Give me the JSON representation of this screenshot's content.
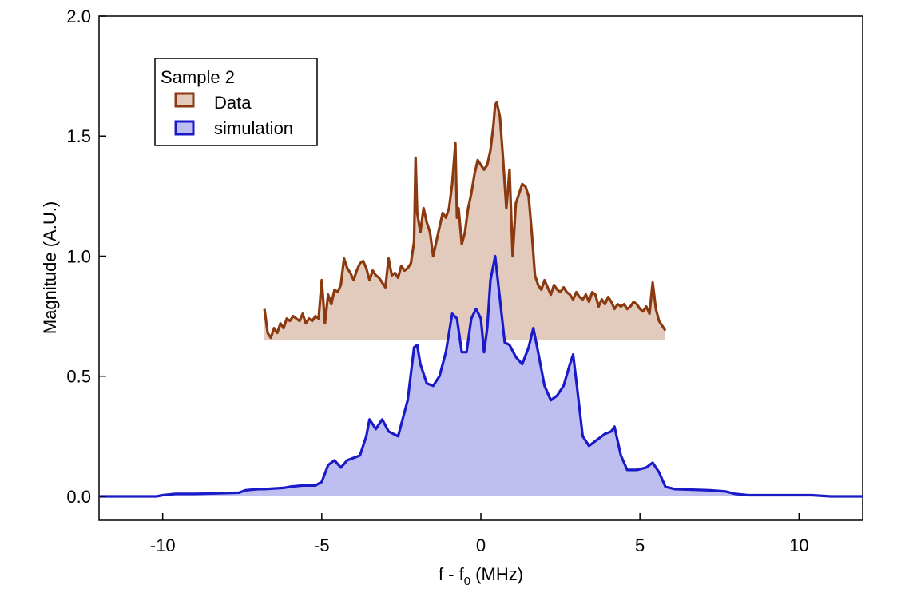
{
  "chart_data": {
    "type": "area",
    "xlabel_main": "f - f",
    "xlabel_sub": "0",
    "xlabel_unit": " (MHz)",
    "ylabel": "Magnitude (A.U.)",
    "xlim": [
      -12,
      12
    ],
    "ylim": [
      -0.1,
      2.0
    ],
    "xticks": [
      -10,
      -5,
      0,
      5,
      10
    ],
    "xtick_labels": [
      "-10",
      "-5",
      "0",
      "5",
      "10"
    ],
    "yticks": [
      0.0,
      0.5,
      1.0,
      1.5,
      2.0
    ],
    "ytick_labels": [
      "0.0",
      "0.5",
      "1.0",
      "1.5",
      "2.0"
    ],
    "grid": false,
    "legend": {
      "title": "Sample 2",
      "placement": "top-left",
      "entries": [
        "Data",
        "simulation"
      ]
    },
    "series": [
      {
        "name": "Data",
        "line_color": "#8B3A0F",
        "fill_color": "#E2CABC",
        "baseline": 0.65,
        "x": [
          -6.8,
          -6.7,
          -6.6,
          -6.5,
          -6.4,
          -6.3,
          -6.2,
          -6.1,
          -6.0,
          -5.9,
          -5.8,
          -5.7,
          -5.6,
          -5.5,
          -5.4,
          -5.3,
          -5.2,
          -5.1,
          -5.0,
          -4.9,
          -4.8,
          -4.7,
          -4.6,
          -4.5,
          -4.4,
          -4.3,
          -4.2,
          -4.1,
          -4.0,
          -3.9,
          -3.8,
          -3.7,
          -3.6,
          -3.5,
          -3.4,
          -3.3,
          -3.2,
          -3.1,
          -3.0,
          -2.9,
          -2.8,
          -2.7,
          -2.6,
          -2.5,
          -2.4,
          -2.3,
          -2.2,
          -2.1,
          -2.05,
          -2.0,
          -1.9,
          -1.8,
          -1.7,
          -1.6,
          -1.5,
          -1.4,
          -1.3,
          -1.2,
          -1.1,
          -1.0,
          -0.9,
          -0.8,
          -0.75,
          -0.7,
          -0.6,
          -0.5,
          -0.4,
          -0.3,
          -0.2,
          -0.1,
          0.0,
          0.1,
          0.2,
          0.3,
          0.4,
          0.45,
          0.5,
          0.6,
          0.7,
          0.8,
          0.9,
          1.0,
          1.1,
          1.2,
          1.3,
          1.4,
          1.5,
          1.6,
          1.7,
          1.8,
          1.9,
          2.0,
          2.1,
          2.2,
          2.3,
          2.4,
          2.5,
          2.6,
          2.7,
          2.8,
          2.9,
          3.0,
          3.1,
          3.2,
          3.3,
          3.4,
          3.5,
          3.6,
          3.7,
          3.8,
          3.9,
          4.0,
          4.1,
          4.2,
          4.3,
          4.4,
          4.5,
          4.6,
          4.7,
          4.8,
          4.9,
          5.0,
          5.1,
          5.2,
          5.3,
          5.4,
          5.5,
          5.6,
          5.7,
          5.8
        ],
        "y": [
          0.78,
          0.68,
          0.66,
          0.7,
          0.68,
          0.72,
          0.7,
          0.74,
          0.73,
          0.75,
          0.74,
          0.73,
          0.76,
          0.72,
          0.74,
          0.73,
          0.75,
          0.74,
          0.9,
          0.72,
          0.84,
          0.8,
          0.86,
          0.85,
          0.88,
          0.99,
          0.95,
          0.93,
          0.9,
          0.94,
          0.97,
          0.98,
          0.95,
          0.9,
          0.94,
          0.92,
          0.91,
          0.89,
          0.87,
          0.99,
          0.92,
          0.93,
          0.91,
          0.96,
          0.94,
          0.95,
          0.97,
          1.06,
          1.41,
          1.18,
          1.1,
          1.2,
          1.14,
          1.1,
          1.0,
          1.06,
          1.12,
          1.18,
          1.16,
          1.2,
          1.3,
          1.47,
          1.16,
          1.2,
          1.05,
          1.1,
          1.2,
          1.26,
          1.34,
          1.4,
          1.38,
          1.36,
          1.38,
          1.44,
          1.55,
          1.63,
          1.64,
          1.58,
          1.4,
          1.2,
          1.36,
          1.0,
          1.22,
          1.26,
          1.3,
          1.29,
          1.25,
          1.1,
          0.92,
          0.88,
          0.86,
          0.9,
          0.87,
          0.84,
          0.88,
          0.86,
          0.85,
          0.87,
          0.85,
          0.84,
          0.82,
          0.85,
          0.83,
          0.82,
          0.84,
          0.81,
          0.85,
          0.84,
          0.79,
          0.82,
          0.8,
          0.83,
          0.81,
          0.78,
          0.8,
          0.79,
          0.8,
          0.78,
          0.79,
          0.81,
          0.8,
          0.78,
          0.77,
          0.79,
          0.76,
          0.89,
          0.78,
          0.73,
          0.71,
          0.69
        ]
      },
      {
        "name": "simulation",
        "line_color": "#1A1AC8",
        "fill_color": "#BEBEF0",
        "baseline": 0.0,
        "x": [
          -12.0,
          -10.2,
          -10.0,
          -9.6,
          -9.0,
          -7.6,
          -7.4,
          -7.0,
          -6.8,
          -6.2,
          -6.0,
          -5.6,
          -5.2,
          -5.0,
          -4.8,
          -4.6,
          -4.4,
          -4.2,
          -4.0,
          -3.8,
          -3.6,
          -3.5,
          -3.3,
          -3.1,
          -2.9,
          -2.6,
          -2.3,
          -2.1,
          -2.0,
          -1.9,
          -1.7,
          -1.5,
          -1.3,
          -1.1,
          -0.9,
          -0.75,
          -0.6,
          -0.45,
          -0.3,
          -0.15,
          0.0,
          0.1,
          0.2,
          0.3,
          0.45,
          0.6,
          0.75,
          0.9,
          1.1,
          1.3,
          1.5,
          1.65,
          1.8,
          2.0,
          2.2,
          2.4,
          2.6,
          2.8,
          2.9,
          3.0,
          3.2,
          3.4,
          3.7,
          3.9,
          4.1,
          4.2,
          4.4,
          4.6,
          4.9,
          5.2,
          5.4,
          5.6,
          5.8,
          6.1,
          7.2,
          7.7,
          8.0,
          8.4,
          10.4,
          11.0,
          12.0
        ],
        "y": [
          0.0,
          0.0,
          0.005,
          0.01,
          0.01,
          0.015,
          0.025,
          0.03,
          0.03,
          0.035,
          0.04,
          0.045,
          0.045,
          0.06,
          0.13,
          0.15,
          0.12,
          0.15,
          0.16,
          0.17,
          0.25,
          0.32,
          0.28,
          0.32,
          0.27,
          0.25,
          0.4,
          0.62,
          0.63,
          0.55,
          0.47,
          0.46,
          0.5,
          0.6,
          0.76,
          0.74,
          0.6,
          0.6,
          0.74,
          0.78,
          0.74,
          0.6,
          0.7,
          0.9,
          1.0,
          0.82,
          0.64,
          0.63,
          0.58,
          0.55,
          0.62,
          0.7,
          0.6,
          0.46,
          0.4,
          0.42,
          0.46,
          0.55,
          0.59,
          0.48,
          0.25,
          0.21,
          0.24,
          0.26,
          0.27,
          0.29,
          0.17,
          0.11,
          0.11,
          0.12,
          0.14,
          0.1,
          0.04,
          0.03,
          0.025,
          0.02,
          0.01,
          0.005,
          0.005,
          0.0,
          0.0
        ]
      }
    ]
  }
}
